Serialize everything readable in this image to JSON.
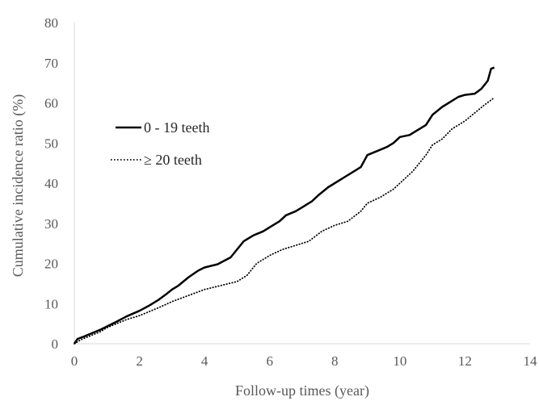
{
  "chart_data": {
    "type": "line",
    "title": "",
    "xlabel": "Follow-up times (year)",
    "ylabel": "Cumulative incidence ratio (%)",
    "xlim": [
      0,
      14
    ],
    "ylim": [
      0,
      80
    ],
    "xticks": [
      0,
      2,
      4,
      6,
      8,
      10,
      12,
      14
    ],
    "yticks": [
      0,
      10,
      20,
      30,
      40,
      50,
      60,
      70,
      80
    ],
    "grid": false,
    "legend_placement": "left",
    "series": [
      {
        "name": "0 - 19 teeth",
        "style": "solid",
        "color": "#000000",
        "x": [
          0,
          0.1,
          0.3,
          0.5,
          0.8,
          1.0,
          1.3,
          1.6,
          2.0,
          2.3,
          2.6,
          2.8,
          3.0,
          3.2,
          3.5,
          3.8,
          4.0,
          4.4,
          4.8,
          5.0,
          5.2,
          5.5,
          5.8,
          6.0,
          6.3,
          6.5,
          6.8,
          7.0,
          7.3,
          7.5,
          7.8,
          8.0,
          8.3,
          8.6,
          8.8,
          9.0,
          9.3,
          9.6,
          9.8,
          10.0,
          10.3,
          10.5,
          10.8,
          11.0,
          11.3,
          11.5,
          11.8,
          12.0,
          12.3,
          12.5,
          12.7,
          12.8,
          12.9
        ],
        "values": [
          0,
          1.2,
          1.8,
          2.5,
          3.5,
          4.3,
          5.5,
          6.8,
          8.2,
          9.5,
          11.0,
          12.2,
          13.5,
          14.5,
          16.5,
          18.2,
          19.0,
          19.8,
          21.5,
          23.5,
          25.5,
          27.0,
          28.0,
          29.0,
          30.5,
          32.0,
          33.0,
          34.0,
          35.5,
          37.0,
          39.0,
          40.0,
          41.5,
          43.0,
          44.0,
          47.0,
          48.0,
          49.0,
          50.0,
          51.5,
          52.0,
          53.0,
          54.5,
          57.0,
          59.0,
          60.0,
          61.5,
          62.0,
          62.3,
          63.5,
          65.5,
          68.5,
          68.8
        ]
      },
      {
        "name": "≥ 20 teeth",
        "style": "dotted",
        "color": "#000000",
        "x": [
          0,
          0.2,
          0.5,
          0.8,
          1.0,
          1.3,
          1.6,
          2.0,
          2.3,
          2.6,
          3.0,
          3.5,
          4.0,
          4.5,
          5.0,
          5.3,
          5.6,
          6.0,
          6.4,
          6.8,
          7.2,
          7.6,
          8.0,
          8.4,
          8.8,
          9.0,
          9.4,
          9.8,
          10.0,
          10.4,
          10.8,
          11.0,
          11.3,
          11.6,
          12.0,
          12.3,
          12.6,
          12.85
        ],
        "values": [
          0,
          1.0,
          2.0,
          3.0,
          4.0,
          5.0,
          6.0,
          7.0,
          8.0,
          9.0,
          10.5,
          12.0,
          13.5,
          14.5,
          15.5,
          17.0,
          20.0,
          22.0,
          23.5,
          24.5,
          25.5,
          28.0,
          29.5,
          30.5,
          33.0,
          35.0,
          36.5,
          38.5,
          40.0,
          43.0,
          47.0,
          49.5,
          51.0,
          53.5,
          55.5,
          57.5,
          59.5,
          61.0
        ]
      }
    ]
  }
}
